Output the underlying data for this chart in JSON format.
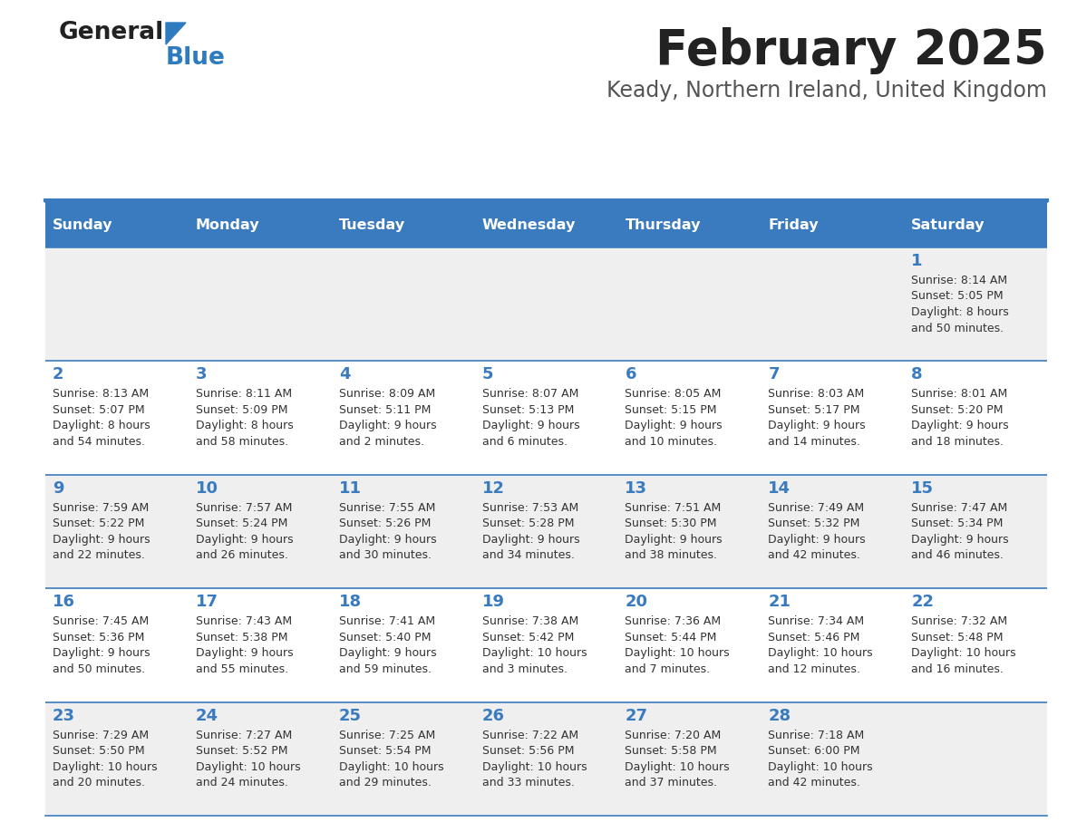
{
  "title": "February 2025",
  "subtitle": "Keady, Northern Ireland, United Kingdom",
  "days_of_week": [
    "Sunday",
    "Monday",
    "Tuesday",
    "Wednesday",
    "Thursday",
    "Friday",
    "Saturday"
  ],
  "header_bg": "#3a7bbf",
  "header_text": "#ffffff",
  "odd_row_bg": "#efefef",
  "even_row_bg": "#ffffff",
  "border_color": "#3a7bbf",
  "day_num_color": "#3a7bbf",
  "cell_text_color": "#333333",
  "title_color": "#222222",
  "subtitle_color": "#555555",
  "calendar_data": [
    [
      {
        "day": "",
        "info": ""
      },
      {
        "day": "",
        "info": ""
      },
      {
        "day": "",
        "info": ""
      },
      {
        "day": "",
        "info": ""
      },
      {
        "day": "",
        "info": ""
      },
      {
        "day": "",
        "info": ""
      },
      {
        "day": "1",
        "info": "Sunrise: 8:14 AM\nSunset: 5:05 PM\nDaylight: 8 hours\nand 50 minutes."
      }
    ],
    [
      {
        "day": "2",
        "info": "Sunrise: 8:13 AM\nSunset: 5:07 PM\nDaylight: 8 hours\nand 54 minutes."
      },
      {
        "day": "3",
        "info": "Sunrise: 8:11 AM\nSunset: 5:09 PM\nDaylight: 8 hours\nand 58 minutes."
      },
      {
        "day": "4",
        "info": "Sunrise: 8:09 AM\nSunset: 5:11 PM\nDaylight: 9 hours\nand 2 minutes."
      },
      {
        "day": "5",
        "info": "Sunrise: 8:07 AM\nSunset: 5:13 PM\nDaylight: 9 hours\nand 6 minutes."
      },
      {
        "day": "6",
        "info": "Sunrise: 8:05 AM\nSunset: 5:15 PM\nDaylight: 9 hours\nand 10 minutes."
      },
      {
        "day": "7",
        "info": "Sunrise: 8:03 AM\nSunset: 5:17 PM\nDaylight: 9 hours\nand 14 minutes."
      },
      {
        "day": "8",
        "info": "Sunrise: 8:01 AM\nSunset: 5:20 PM\nDaylight: 9 hours\nand 18 minutes."
      }
    ],
    [
      {
        "day": "9",
        "info": "Sunrise: 7:59 AM\nSunset: 5:22 PM\nDaylight: 9 hours\nand 22 minutes."
      },
      {
        "day": "10",
        "info": "Sunrise: 7:57 AM\nSunset: 5:24 PM\nDaylight: 9 hours\nand 26 minutes."
      },
      {
        "day": "11",
        "info": "Sunrise: 7:55 AM\nSunset: 5:26 PM\nDaylight: 9 hours\nand 30 minutes."
      },
      {
        "day": "12",
        "info": "Sunrise: 7:53 AM\nSunset: 5:28 PM\nDaylight: 9 hours\nand 34 minutes."
      },
      {
        "day": "13",
        "info": "Sunrise: 7:51 AM\nSunset: 5:30 PM\nDaylight: 9 hours\nand 38 minutes."
      },
      {
        "day": "14",
        "info": "Sunrise: 7:49 AM\nSunset: 5:32 PM\nDaylight: 9 hours\nand 42 minutes."
      },
      {
        "day": "15",
        "info": "Sunrise: 7:47 AM\nSunset: 5:34 PM\nDaylight: 9 hours\nand 46 minutes."
      }
    ],
    [
      {
        "day": "16",
        "info": "Sunrise: 7:45 AM\nSunset: 5:36 PM\nDaylight: 9 hours\nand 50 minutes."
      },
      {
        "day": "17",
        "info": "Sunrise: 7:43 AM\nSunset: 5:38 PM\nDaylight: 9 hours\nand 55 minutes."
      },
      {
        "day": "18",
        "info": "Sunrise: 7:41 AM\nSunset: 5:40 PM\nDaylight: 9 hours\nand 59 minutes."
      },
      {
        "day": "19",
        "info": "Sunrise: 7:38 AM\nSunset: 5:42 PM\nDaylight: 10 hours\nand 3 minutes."
      },
      {
        "day": "20",
        "info": "Sunrise: 7:36 AM\nSunset: 5:44 PM\nDaylight: 10 hours\nand 7 minutes."
      },
      {
        "day": "21",
        "info": "Sunrise: 7:34 AM\nSunset: 5:46 PM\nDaylight: 10 hours\nand 12 minutes."
      },
      {
        "day": "22",
        "info": "Sunrise: 7:32 AM\nSunset: 5:48 PM\nDaylight: 10 hours\nand 16 minutes."
      }
    ],
    [
      {
        "day": "23",
        "info": "Sunrise: 7:29 AM\nSunset: 5:50 PM\nDaylight: 10 hours\nand 20 minutes."
      },
      {
        "day": "24",
        "info": "Sunrise: 7:27 AM\nSunset: 5:52 PM\nDaylight: 10 hours\nand 24 minutes."
      },
      {
        "day": "25",
        "info": "Sunrise: 7:25 AM\nSunset: 5:54 PM\nDaylight: 10 hours\nand 29 minutes."
      },
      {
        "day": "26",
        "info": "Sunrise: 7:22 AM\nSunset: 5:56 PM\nDaylight: 10 hours\nand 33 minutes."
      },
      {
        "day": "27",
        "info": "Sunrise: 7:20 AM\nSunset: 5:58 PM\nDaylight: 10 hours\nand 37 minutes."
      },
      {
        "day": "28",
        "info": "Sunrise: 7:18 AM\nSunset: 6:00 PM\nDaylight: 10 hours\nand 42 minutes."
      },
      {
        "day": "",
        "info": ""
      }
    ]
  ]
}
